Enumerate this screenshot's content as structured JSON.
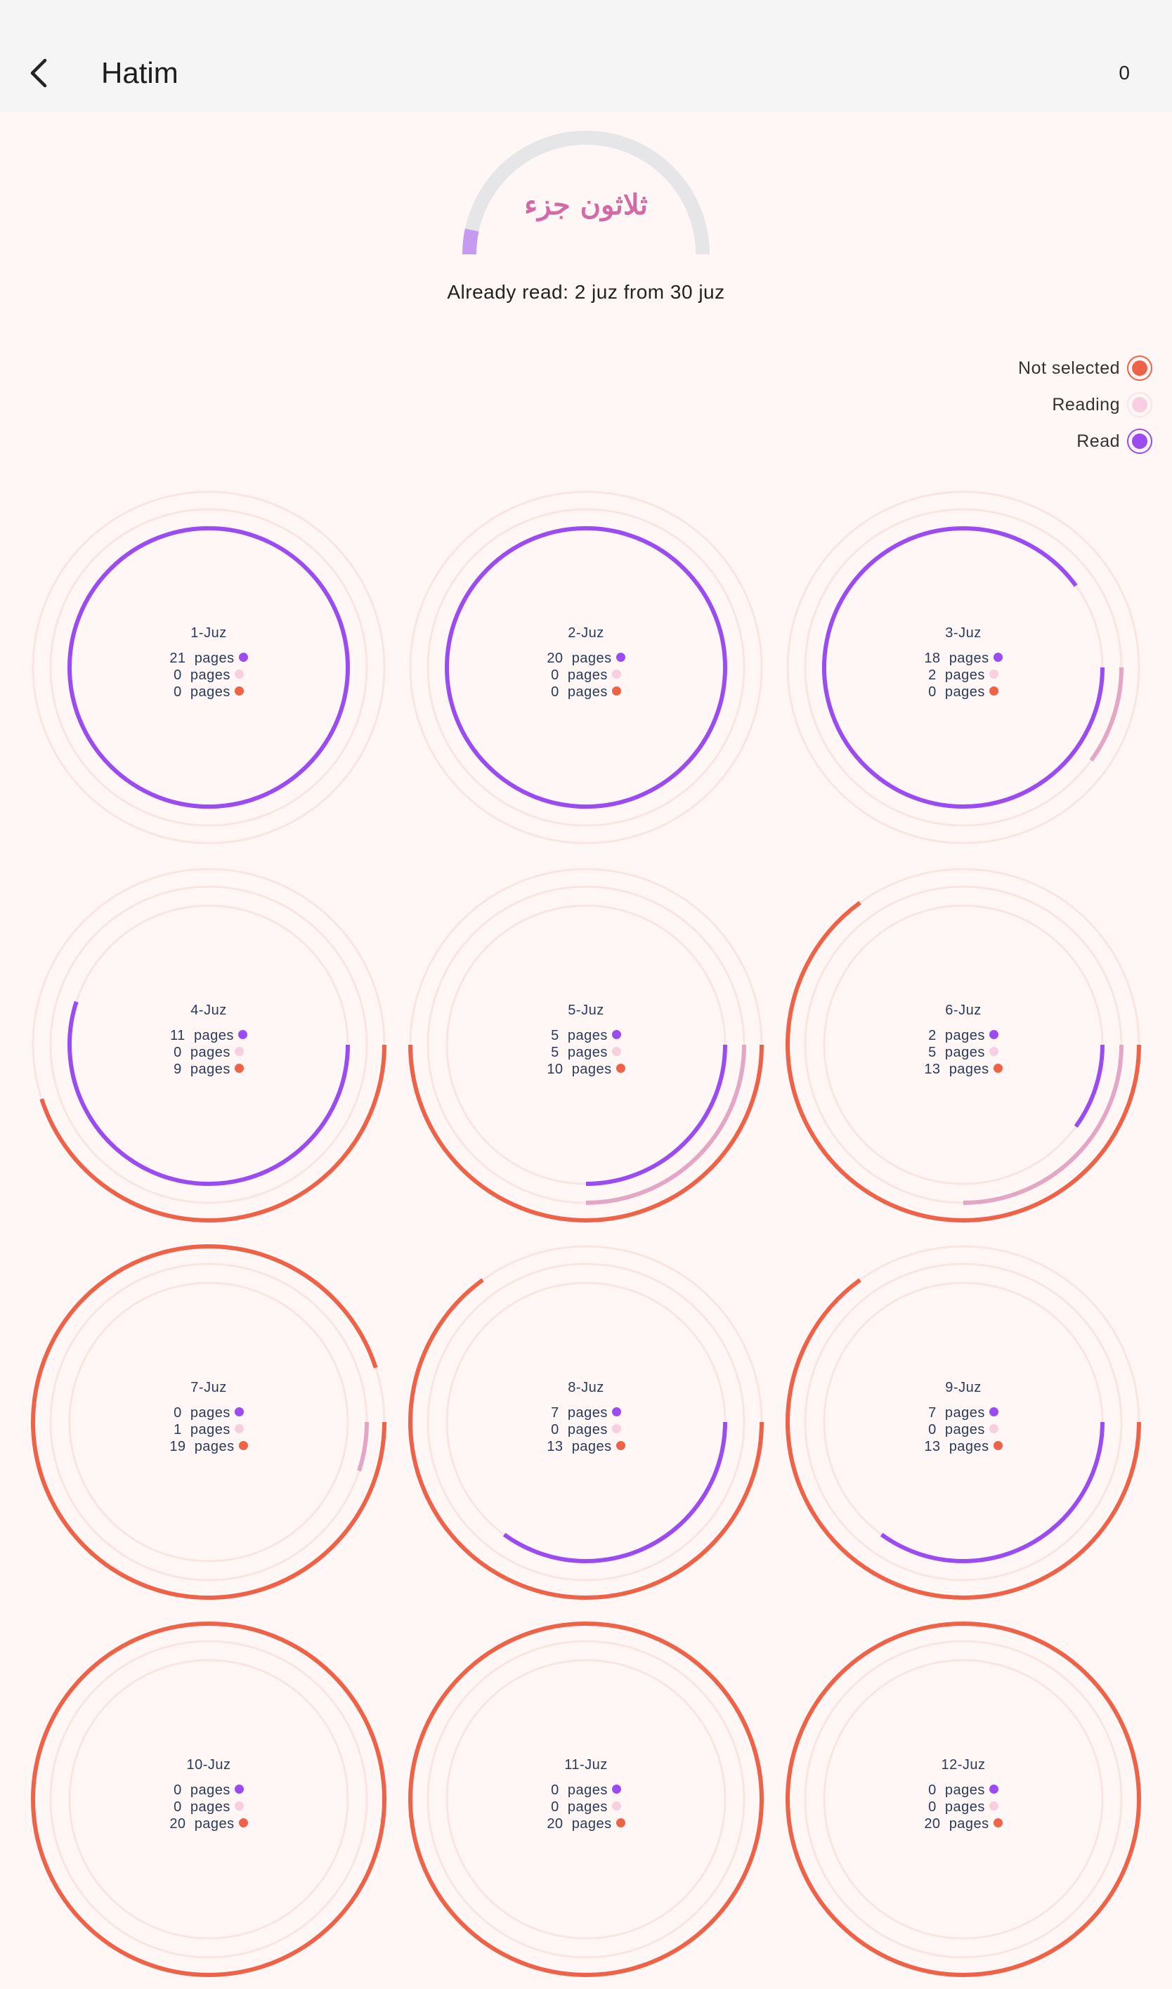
{
  "appbar": {
    "title": "Hatim",
    "counter": "0"
  },
  "overall": {
    "label": "ثلاثون جزء",
    "already_read_text": "Already read: 2 juz from 30 juz",
    "progress": 0.0667
  },
  "colors": {
    "read": "#9b4cf0",
    "reading": "#e3a6c4",
    "reading_dot": "#f8cfe0",
    "not_selected": "#ee6248",
    "faint_ring": "#f8e6e3"
  },
  "legend": [
    {
      "label": "Not selected",
      "key": "not_selected"
    },
    {
      "label": "Reading",
      "key": "reading"
    },
    {
      "label": "Read",
      "key": "read"
    }
  ],
  "unit": "pages",
  "juz": [
    {
      "title": "1-Juz",
      "read": 21,
      "reading": 0,
      "not_selected": 0
    },
    {
      "title": "2-Juz",
      "read": 20,
      "reading": 0,
      "not_selected": 0
    },
    {
      "title": "3-Juz",
      "read": 18,
      "reading": 2,
      "not_selected": 0
    },
    {
      "title": "4-Juz",
      "read": 11,
      "reading": 0,
      "not_selected": 9
    },
    {
      "title": "5-Juz",
      "read": 5,
      "reading": 5,
      "not_selected": 10
    },
    {
      "title": "6-Juz",
      "read": 2,
      "reading": 5,
      "not_selected": 13
    },
    {
      "title": "7-Juz",
      "read": 0,
      "reading": 1,
      "not_selected": 19
    },
    {
      "title": "8-Juz",
      "read": 7,
      "reading": 0,
      "not_selected": 13
    },
    {
      "title": "9-Juz",
      "read": 7,
      "reading": 0,
      "not_selected": 13
    },
    {
      "title": "10-Juz",
      "read": 0,
      "reading": 0,
      "not_selected": 20
    },
    {
      "title": "11-Juz",
      "read": 0,
      "reading": 0,
      "not_selected": 20
    },
    {
      "title": "12-Juz",
      "read": 0,
      "reading": 0,
      "not_selected": 20
    }
  ]
}
